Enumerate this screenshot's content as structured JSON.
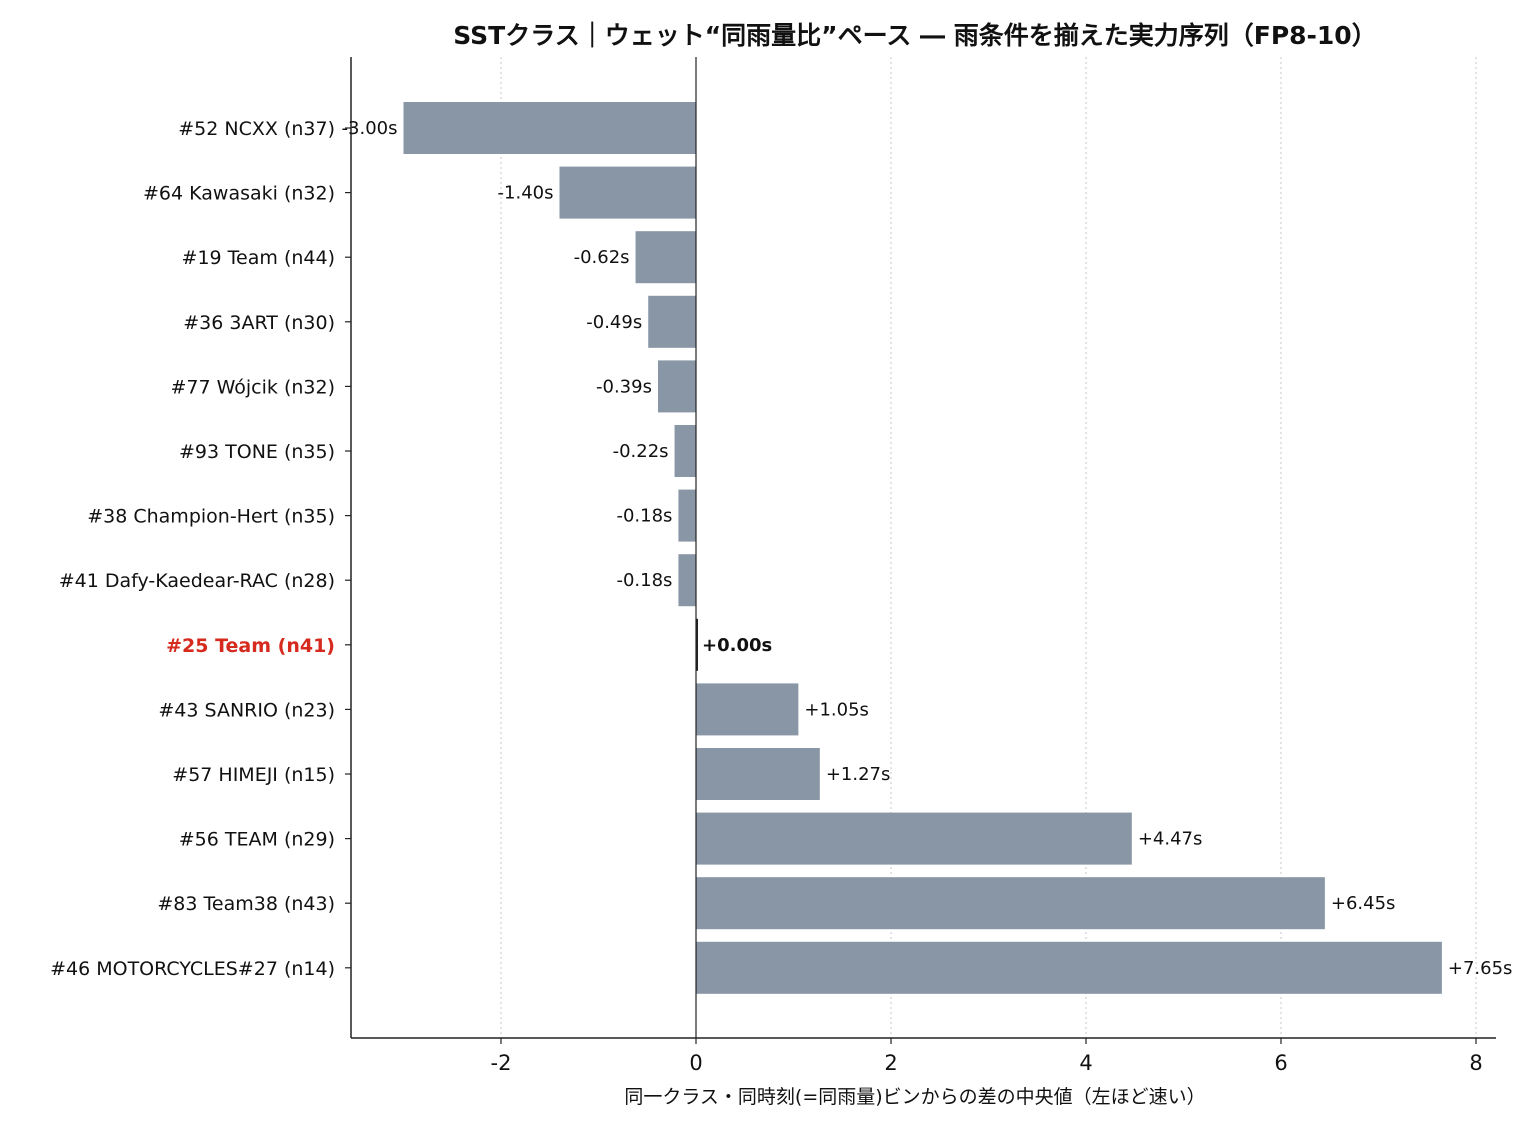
{
  "chart_data": {
    "type": "bar",
    "orientation": "horizontal",
    "title": "SSTクラス｜ウェット“同雨量比”ペース ― 雨条件を揃えた実力序列（FP8-10）",
    "xlabel": "同一クラス・同時刻(=同雨量)ビンからの差の中央値（左ほど速い）",
    "ylabel": "",
    "xlim": [
      -3.5,
      8.2
    ],
    "xticks": [
      "-2",
      "0",
      "2",
      "4",
      "6",
      "8"
    ],
    "xtick_values": [
      -2,
      0,
      2,
      4,
      6,
      8
    ],
    "grid": "x, dotted",
    "categories": [
      "#52 NCXX (n37)",
      "#64 Kawasaki (n32)",
      "#19 Team (n44)",
      "#36 3ART (n30)",
      "#77 Wójcik (n32)",
      "#93 TONE (n35)",
      "#38 Champion-Hert (n35)",
      "#41 Dafy-Kaedear-RAC (n28)",
      "#25 Team (n41)",
      "#43 SANRIO (n23)",
      "#57 HIMEJI (n15)",
      "#56 TEAM (n29)",
      "#83 Team38 (n43)",
      "#46 MOTORCYCLES#27 (n14)"
    ],
    "values": [
      -3.0,
      -1.4,
      -0.62,
      -0.49,
      -0.39,
      -0.22,
      -0.18,
      -0.18,
      0.0,
      1.05,
      1.27,
      4.47,
      6.45,
      7.65
    ],
    "value_labels": [
      "-3.00s",
      "-1.40s",
      "-0.62s",
      "-0.49s",
      "-0.39s",
      "-0.22s",
      "-0.18s",
      "-0.18s",
      "+0.00s",
      "+1.05s",
      "+1.27s",
      "+4.47s",
      "+6.45s",
      "+7.65s"
    ],
    "highlight_index": 8,
    "colors": {
      "bar": "#8896a5",
      "highlight_label": "#d62a1e",
      "axis": "#222222",
      "grid": "#d0d0d0"
    }
  }
}
